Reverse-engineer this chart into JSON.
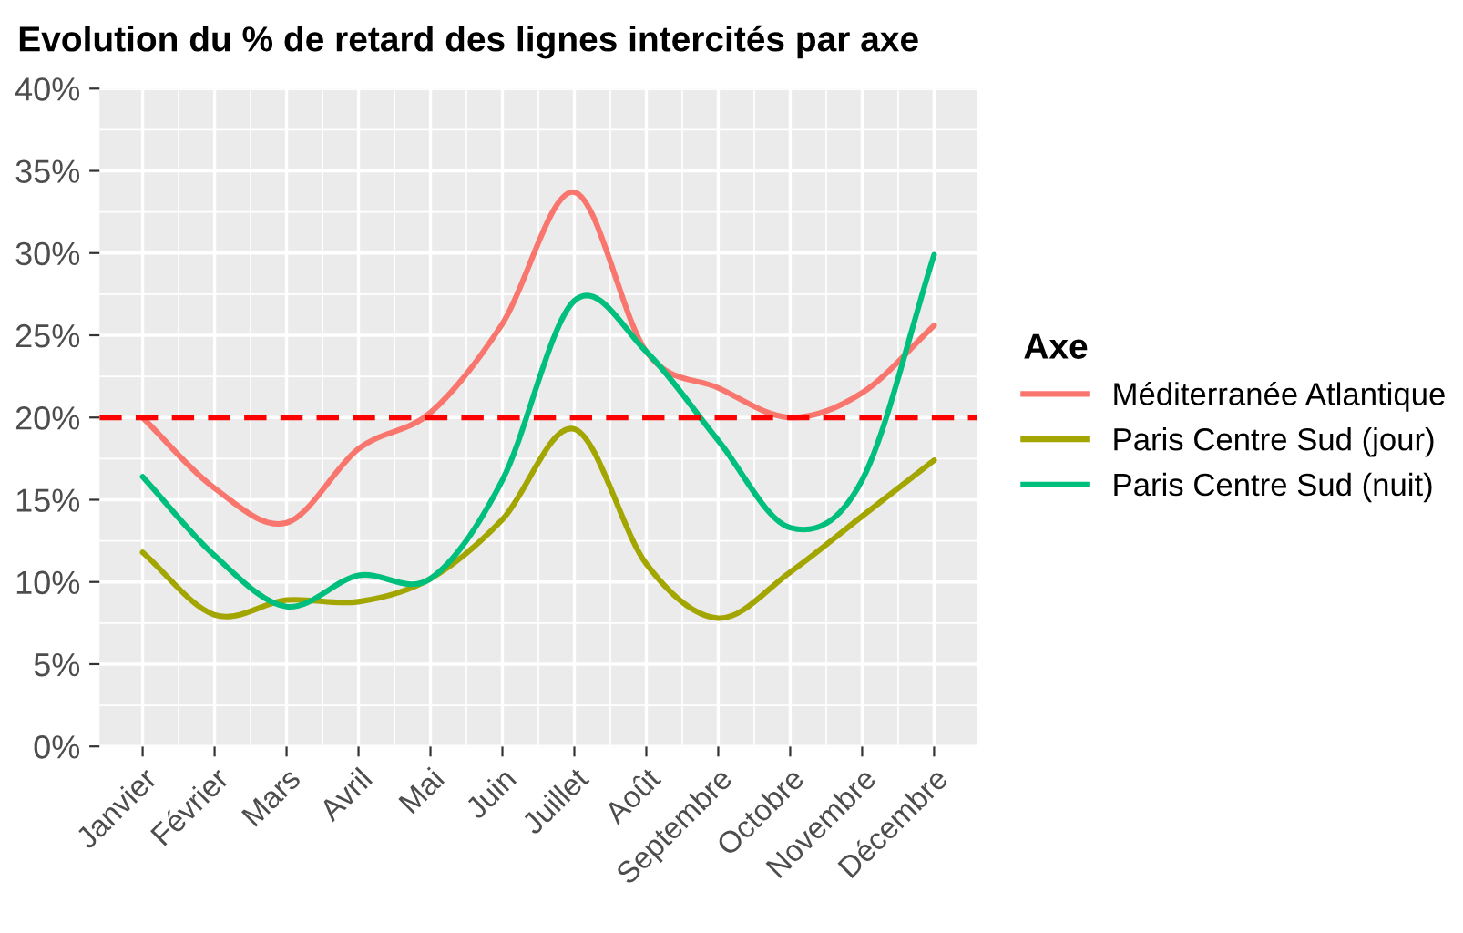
{
  "chart_data": {
    "type": "line",
    "title": "Evolution du % de retard des lignes intercités par axe",
    "categories": [
      "Janvier",
      "Février",
      "Mars",
      "Avril",
      "Mai",
      "Juin",
      "Juillet",
      "Août",
      "Septembre",
      "Octobre",
      "Novembre",
      "Décembre"
    ],
    "series": [
      {
        "name": "Méditerranée Atlantique",
        "color": "#f8766d",
        "values": [
          20.0,
          15.7,
          13.6,
          18.1,
          20.3,
          25.7,
          33.7,
          24.0,
          21.8,
          20.0,
          21.5,
          25.6
        ]
      },
      {
        "name": "Paris Centre Sud (jour)",
        "color": "#a3a500",
        "values": [
          11.8,
          8.0,
          8.9,
          8.8,
          10.2,
          13.8,
          19.3,
          11.1,
          7.8,
          10.6,
          14.0,
          17.4
        ]
      },
      {
        "name": "Paris Centre Sud (nuit)",
        "color": "#00bf7d",
        "values": [
          16.4,
          11.6,
          8.5,
          10.4,
          10.2,
          16.2,
          27.1,
          24.0,
          18.6,
          13.3,
          16.2,
          29.9
        ]
      }
    ],
    "ylim": [
      0,
      40
    ],
    "yticks": [
      {
        "value": 0,
        "label": "0%"
      },
      {
        "value": 5,
        "label": "5%"
      },
      {
        "value": 10,
        "label": "10%"
      },
      {
        "value": 15,
        "label": "15%"
      },
      {
        "value": 20,
        "label": "20%"
      },
      {
        "value": 25,
        "label": "25%"
      },
      {
        "value": 30,
        "label": "30%"
      },
      {
        "value": 35,
        "label": "35%"
      },
      {
        "value": 40,
        "label": "40%"
      }
    ],
    "ref_lines": [
      {
        "axis": "y",
        "value": 20,
        "color": "#ff0000",
        "line_style": "dashed"
      }
    ],
    "legend_title": "Axe",
    "legend": "right",
    "grid": true,
    "line_style": "solid",
    "marker": "none"
  }
}
